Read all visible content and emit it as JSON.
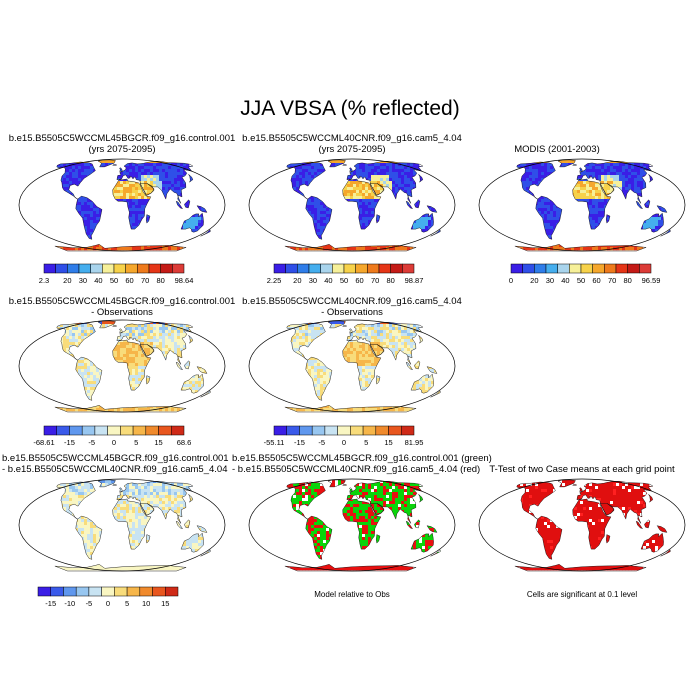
{
  "title": "JJA VBSA (% reflected)",
  "panels": [
    {
      "id": "p1",
      "line1": "b.e15.B5505C5WCCML45BGCR.f09_g16.control.001",
      "line2": "(yrs 2075-2095)",
      "kind": "abs",
      "colorbar": {
        "min": "2.3",
        "max": "98.64",
        "labels": [
          "20",
          "30",
          "40",
          "50",
          "60",
          "70",
          "80"
        ]
      }
    },
    {
      "id": "p2",
      "line1": "b.e15.B5505C5WCCML40CNR.f09_g16.cam5_4.04",
      "line2": "(yrs 2075-2095)",
      "kind": "abs",
      "colorbar": {
        "min": "2.25",
        "max": "98.87",
        "labels": [
          "20",
          "30",
          "40",
          "50",
          "60",
          "70",
          "80"
        ]
      }
    },
    {
      "id": "p3",
      "line1": "MODIS (2001-2003)",
      "line2": "",
      "kind": "abs",
      "colorbar": {
        "min": "0",
        "max": "96.59",
        "labels": [
          "20",
          "30",
          "40",
          "50",
          "60",
          "70",
          "80"
        ]
      }
    },
    {
      "id": "p4",
      "line1": "b.e15.B5505C5WCCML45BGCR.f09_g16.control.001",
      "line2": "- Observations",
      "kind": "diff",
      "colorbar": {
        "min": "-68.61",
        "max": "68.6",
        "labels": [
          "-15",
          "-5",
          "0",
          "5",
          "15"
        ]
      }
    },
    {
      "id": "p5",
      "line1": "b.e15.B5505C5WCCML40CNR.f09_g16.cam5_4.04",
      "line2": "- Observations",
      "kind": "diff",
      "colorbar": {
        "min": "-55.11",
        "max": "81.95",
        "labels": [
          "-15",
          "-5",
          "0",
          "5",
          "15"
        ]
      }
    },
    {
      "id": "p6",
      "line1": "b.e15.B5505C5WCCML45BGCR.f09_g16.control.001",
      "line2": "- b.e15.B5505C5WCCML40CNR.f09_g16.cam5_4.04",
      "kind": "mdiff",
      "colorbar": {
        "min": "",
        "max": "",
        "labels": [
          "-15",
          "-10",
          "-5",
          "0",
          "5",
          "10",
          "15"
        ]
      }
    },
    {
      "id": "p7",
      "line1": "b.e15.B5505C5WCCML45BGCR.f09_g16.control.001 (green)",
      "line2": "- b.e15.B5505C5WCCML40CNR.f09_g16.cam5_4.04 (red)",
      "kind": "rg",
      "note": "Model relative to Obs"
    },
    {
      "id": "p8",
      "line1": "T-Test of two Case means at each grid point",
      "line2": "",
      "kind": "ttest",
      "note": "Cells are significant at 0.1 level"
    }
  ],
  "colors": {
    "abs": [
      "#3a1ee6",
      "#2f4fe8",
      "#2f7de9",
      "#45aeee",
      "#a9d4ec",
      "#f6f099",
      "#f7d24a",
      "#f5a72c",
      "#ee7a1c",
      "#e53517",
      "#c41a16",
      "#dc3b37"
    ],
    "diff": [
      "#3a1ee6",
      "#3a5aea",
      "#5f97ee",
      "#97c6f0",
      "#c8e3f2",
      "#f9f6c2",
      "#f8dc7b",
      "#f6b64a",
      "#f08a2c",
      "#e8561e",
      "#cf2a17"
    ],
    "mdiff": [
      "#3a1ee6",
      "#3a5aea",
      "#5f97ee",
      "#97c6f0",
      "#c8e3f2",
      "#f9f6c2",
      "#f8dc7b",
      "#f6b64a",
      "#f08a2c",
      "#e8561e",
      "#cf2a17"
    ]
  }
}
